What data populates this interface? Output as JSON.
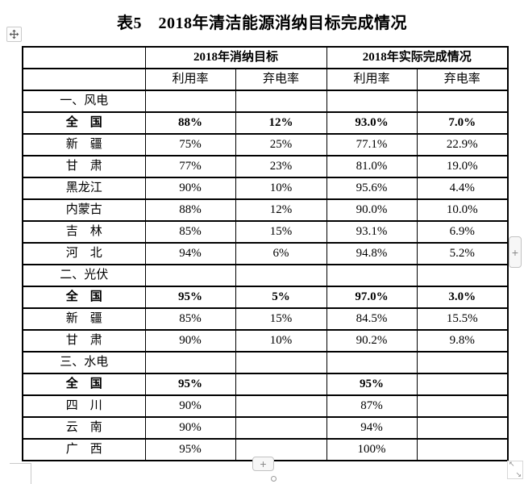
{
  "title": "表5　2018年清洁能源消纳目标完成情况",
  "table": {
    "header_groups": [
      {
        "label": "2018年消纳目标"
      },
      {
        "label": "2018年实际完成情况"
      }
    ],
    "sub_headers": [
      "利用率",
      "弃电率",
      "利用率",
      "弃电率"
    ],
    "rows": [
      {
        "type": "section",
        "label": "一、风电",
        "values": [
          "",
          "",
          "",
          ""
        ]
      },
      {
        "type": "data",
        "bold": true,
        "label": "全　国",
        "values": [
          "88%",
          "12%",
          "93.0%",
          "7.0%"
        ]
      },
      {
        "type": "data",
        "bold": false,
        "label": "新　疆",
        "values": [
          "75%",
          "25%",
          "77.1%",
          "22.9%"
        ]
      },
      {
        "type": "data",
        "bold": false,
        "label": "甘　肃",
        "values": [
          "77%",
          "23%",
          "81.0%",
          "19.0%"
        ]
      },
      {
        "type": "data",
        "bold": false,
        "label": "黑龙江",
        "values": [
          "90%",
          "10%",
          "95.6%",
          "4.4%"
        ]
      },
      {
        "type": "data",
        "bold": false,
        "label": "内蒙古",
        "values": [
          "88%",
          "12%",
          "90.0%",
          "10.0%"
        ]
      },
      {
        "type": "data",
        "bold": false,
        "label": "吉　林",
        "values": [
          "85%",
          "15%",
          "93.1%",
          "6.9%"
        ]
      },
      {
        "type": "data",
        "bold": false,
        "label": "河　北",
        "values": [
          "94%",
          "6%",
          "94.8%",
          "5.2%"
        ]
      },
      {
        "type": "section",
        "label": "二、光伏",
        "values": [
          "",
          "",
          "",
          ""
        ]
      },
      {
        "type": "data",
        "bold": true,
        "label": "全　国",
        "values": [
          "95%",
          "5%",
          "97.0%",
          "3.0%"
        ]
      },
      {
        "type": "data",
        "bold": false,
        "label": "新　疆",
        "values": [
          "85%",
          "15%",
          "84.5%",
          "15.5%"
        ]
      },
      {
        "type": "data",
        "bold": false,
        "label": "甘　肃",
        "values": [
          "90%",
          "10%",
          "90.2%",
          "9.8%"
        ]
      },
      {
        "type": "section",
        "label": "三、水电",
        "values": [
          "",
          "",
          "",
          ""
        ]
      },
      {
        "type": "data",
        "bold": true,
        "label": "全　国",
        "values": [
          "95%",
          "",
          "95%",
          ""
        ]
      },
      {
        "type": "data",
        "bold": false,
        "label": "四　川",
        "values": [
          "90%",
          "",
          "87%",
          ""
        ]
      },
      {
        "type": "data",
        "bold": false,
        "label": "云　南",
        "values": [
          "90%",
          "",
          "94%",
          ""
        ]
      },
      {
        "type": "data",
        "bold": false,
        "label": "广　西",
        "values": [
          "95%",
          "",
          "100%",
          ""
        ]
      }
    ]
  },
  "controls": {
    "insert_row_button_label": "+",
    "insert_column_button_label": "+",
    "resize_arrow_nw": "↖",
    "resize_arrow_se": "↘"
  },
  "colors": {
    "table_border": "#000000",
    "control_border": "#c2c2c2",
    "control_glyph": "#8a8a8a",
    "page_mark": "#c9c9c9",
    "background": "#ffffff",
    "text": "#000000"
  }
}
